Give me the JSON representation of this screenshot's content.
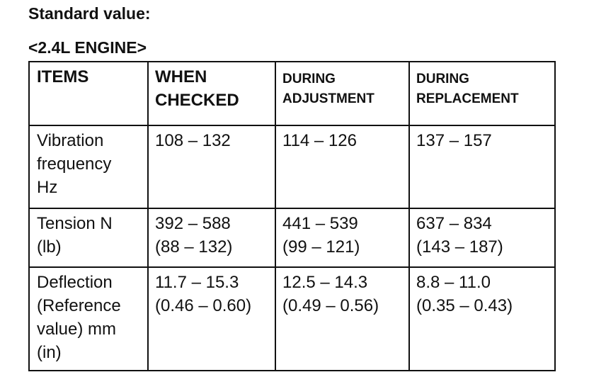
{
  "header": {
    "title": "Standard value:",
    "subtitle": "<2.4L ENGINE>"
  },
  "table": {
    "columns": [
      "ITEMS",
      "WHEN\nCHECKED",
      "DURING\nADJUSTMENT",
      "DURING\nREPLACEMENT"
    ],
    "rows": [
      [
        "Vibration\nfrequency\nHz",
        "108 – 132",
        "114 – 126",
        "137 – 157"
      ],
      [
        "Tension N\n(lb)",
        "392 – 588\n(88 – 132)",
        "441 – 539\n(99 – 121)",
        "637 – 834\n(143 – 187)"
      ],
      [
        "Deflection\n(Reference\nvalue) mm\n(in)",
        "11.7 – 15.3\n(0.46 – 0.60)",
        "12.5 – 14.3\n(0.49 – 0.56)",
        "8.8 – 11.0\n(0.35 – 0.43)"
      ]
    ]
  }
}
